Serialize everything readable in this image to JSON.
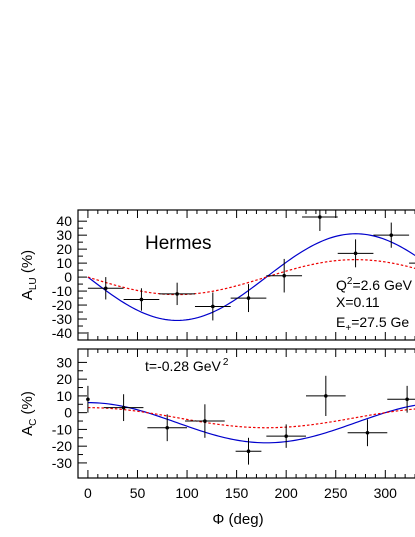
{
  "chart_data": [
    {
      "type": "scatter",
      "panel": "top",
      "ylabel_main": "A",
      "ylabel_sub": "LU",
      "ylabel_unit": " (%)",
      "xlim": [
        -10,
        335
      ],
      "ylim": [
        -45,
        48
      ],
      "yticks": [
        40,
        30,
        20,
        10,
        0,
        -10,
        -20,
        -30,
        -40
      ],
      "ytick_labels": [
        "40",
        "30",
        "20",
        "10",
        "0",
        "-10",
        "-20",
        "-30",
        "-40"
      ],
      "annotations": {
        "experiment": "Hermes",
        "q2_pre": "Q",
        "q2_sup": "2",
        "q2_post": "=2.6 GeV",
        "x_value": "X=0.11",
        "e_pre": "E",
        "e_sub": "+",
        "e_post": "=27.5 Ge"
      },
      "points": [
        {
          "x": 18,
          "y": -8,
          "xerr": 18,
          "yerr": 8
        },
        {
          "x": 54,
          "y": -16,
          "xerr": 18,
          "yerr": 8
        },
        {
          "x": 90,
          "y": -12,
          "xerr": 18,
          "yerr": 8
        },
        {
          "x": 126,
          "y": -21,
          "xerr": 18,
          "yerr": 10
        },
        {
          "x": 162,
          "y": -15,
          "xerr": 18,
          "yerr": 10
        },
        {
          "x": 198,
          "y": 1,
          "xerr": 18,
          "yerr": 12
        },
        {
          "x": 234,
          "y": 43,
          "xerr": 18,
          "yerr": 10
        },
        {
          "x": 270,
          "y": 17,
          "xerr": 18,
          "yerr": 10
        },
        {
          "x": 306,
          "y": 30,
          "xerr": 18,
          "yerr": 9
        },
        {
          "x": 342,
          "y": 10,
          "xerr": 18,
          "yerr": 10
        }
      ],
      "curves": [
        {
          "color": "#0000cc",
          "dash": "solid",
          "amplitude": 31
        },
        {
          "color": "#ee0000",
          "dash": "dotted",
          "amplitude": 12.5
        }
      ]
    },
    {
      "type": "scatter",
      "panel": "bottom",
      "ylabel_main": "A",
      "ylabel_sub": "C",
      "ylabel_unit": " (%)",
      "xlabel": "Φ (deg)",
      "xlim": [
        -10,
        335
      ],
      "ylim": [
        -39,
        38
      ],
      "xticks": [
        0,
        50,
        100,
        150,
        200,
        250,
        300
      ],
      "xtick_labels": [
        "0",
        "50",
        "100",
        "150",
        "200",
        "250",
        "300"
      ],
      "yticks": [
        30,
        20,
        10,
        0,
        -10,
        -20,
        -30
      ],
      "ytick_labels": [
        "30",
        "20",
        "10",
        "0",
        "-10",
        "-20",
        "-30"
      ],
      "annotations": {
        "t_pre": "t=-0.28 GeV",
        "t_sup": "2"
      },
      "points": [
        {
          "x": 0,
          "y": 8,
          "xerr": 0,
          "yerr": 8
        },
        {
          "x": 36,
          "y": 3,
          "xerr": 20,
          "yerr": 8
        },
        {
          "x": 80,
          "y": -9,
          "xerr": 20,
          "yerr": 8
        },
        {
          "x": 118,
          "y": -5,
          "xerr": 20,
          "yerr": 10
        },
        {
          "x": 162,
          "y": -23,
          "xerr": 13,
          "yerr": 8
        },
        {
          "x": 200,
          "y": -14,
          "xerr": 20,
          "yerr": 7
        },
        {
          "x": 240,
          "y": 10,
          "xerr": 20,
          "yerr": 12
        },
        {
          "x": 282,
          "y": -12,
          "xerr": 20,
          "yerr": 8
        },
        {
          "x": 322,
          "y": 8,
          "xerr": 20,
          "yerr": 8
        }
      ],
      "curves": [
        {
          "color": "#0000cc",
          "dash": "solid",
          "offset": -6,
          "amplitude": 12
        },
        {
          "color": "#ee0000",
          "dash": "dotted",
          "offset": -3,
          "amplitude": 6
        }
      ]
    }
  ]
}
